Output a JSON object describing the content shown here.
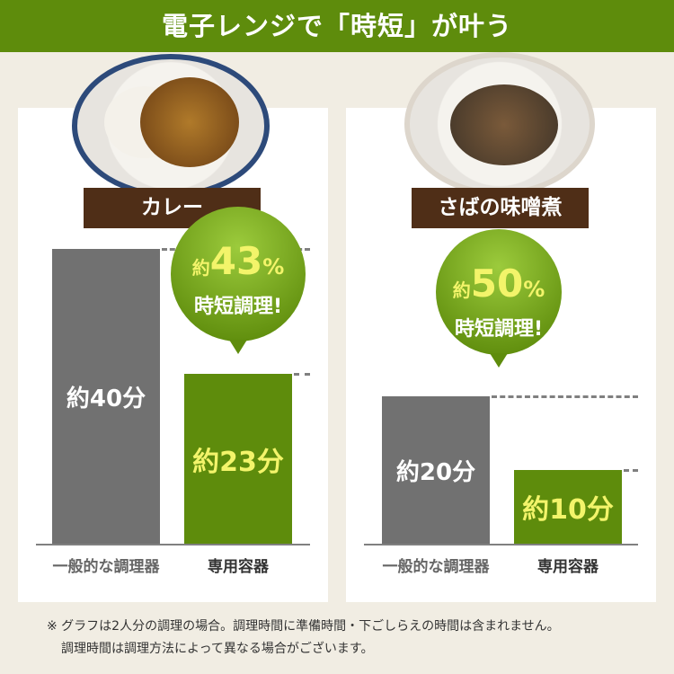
{
  "header": {
    "title": "電子レンジで「時短」が叶う"
  },
  "colors": {
    "header": "#5e8c0c",
    "label_bg": "#4f2e17",
    "general_bar": "#717171",
    "dedicated_bar": "#5e8c0c",
    "value_text": "#f3f46a"
  },
  "chart_data": [
    {
      "type": "bar",
      "title": "カレー",
      "categories": [
        "一般的な調理器",
        "専用容器"
      ],
      "values": [
        40,
        23
      ],
      "unit": "分",
      "data_labels": [
        "約40分",
        "約23分"
      ],
      "callout": {
        "prefix": "約",
        "value": "43",
        "unit": "%",
        "text": "時短調理!"
      }
    },
    {
      "type": "bar",
      "title": "さばの味噌煮",
      "categories": [
        "一般的な調理器",
        "専用容器"
      ],
      "values": [
        20,
        10
      ],
      "unit": "分",
      "data_labels": [
        "約20分",
        "約10分"
      ],
      "callout": {
        "prefix": "約",
        "value": "50",
        "unit": "%",
        "text": "時短調理!"
      }
    }
  ],
  "footnote": [
    "※ グラフは2人分の調理の場合。調理時間に準備時間・下ごしらえの時間は含まれません。",
    "調理時間は調理方法によって異なる場合がございます。"
  ]
}
